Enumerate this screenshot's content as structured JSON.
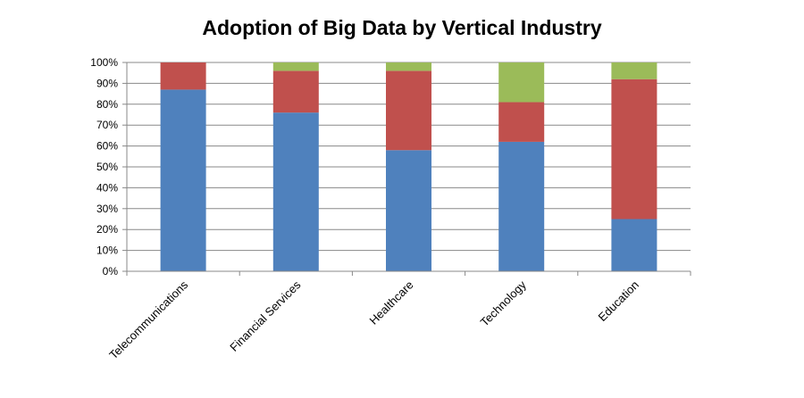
{
  "chart_data": {
    "type": "bar",
    "stacked": true,
    "title": "Adoption of Big Data by Vertical Industry",
    "xlabel": "",
    "ylabel": "",
    "categories": [
      "Telecommunications",
      "Financial Services",
      "Healthcare",
      "Technology",
      "Education"
    ],
    "series": [
      {
        "values": [
          87,
          76,
          58,
          62,
          25
        ]
      },
      {
        "values": [
          13,
          20,
          38,
          19,
          67
        ]
      },
      {
        "values": [
          0,
          4,
          4,
          19,
          8
        ]
      }
    ],
    "ylim": [
      0,
      100
    ],
    "yticks": [
      "0%",
      "10%",
      "20%",
      "30%",
      "40%",
      "50%",
      "60%",
      "70%",
      "80%",
      "90%",
      "100%"
    ],
    "grid": true,
    "legend": "none",
    "colors": [
      "#4F81BD",
      "#C0504D",
      "#9BBB59"
    ]
  }
}
